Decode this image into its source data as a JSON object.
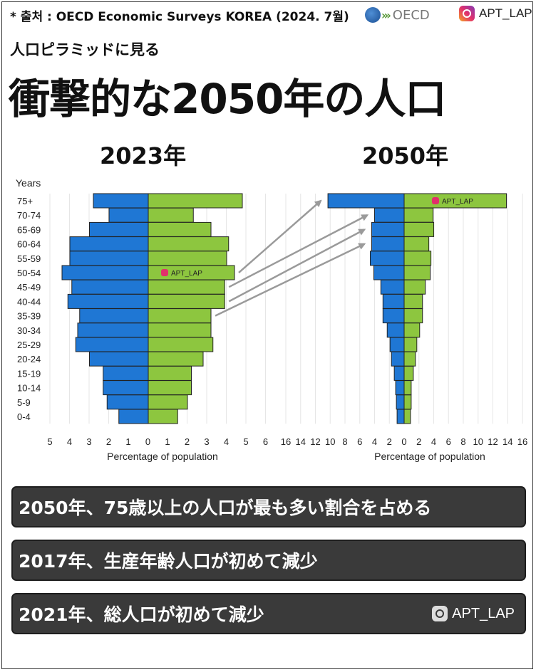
{
  "header": {
    "source": "* 출처 : OECD Economic Surveys KOREA (2024. 7월)",
    "oecd_logo": "OECD",
    "instagram": "APT_LAP"
  },
  "subtitle": "人口ピラミッドに見る",
  "title": "衝撃的な2050年の人口",
  "colors": {
    "male": "#1f77d4",
    "female": "#8dc63f",
    "bar_border": "#222222",
    "arrow": "#9a9a9a",
    "box_bg": "#3a3a3a"
  },
  "chart_data": [
    {
      "type": "bar",
      "orientation": "horizontal-population-pyramid",
      "title": "2023年",
      "ylabel": "Years",
      "xlabel": "Percentage of population",
      "categories": [
        "75+",
        "70-74",
        "65-69",
        "60-64",
        "55-59",
        "50-54",
        "45-49",
        "40-44",
        "35-39",
        "30-34",
        "25-29",
        "20-24",
        "15-19",
        "10-14",
        "5-9",
        "0-4"
      ],
      "series": [
        {
          "side": "left",
          "color": "#1f77d4",
          "values": [
            2.8,
            2.0,
            3.0,
            4.0,
            4.0,
            4.4,
            3.9,
            4.1,
            3.5,
            3.6,
            3.7,
            3.0,
            2.3,
            2.3,
            2.1,
            1.5
          ]
        },
        {
          "side": "right",
          "color": "#8dc63f",
          "values": [
            4.8,
            2.3,
            3.2,
            4.1,
            4.0,
            4.4,
            3.9,
            3.9,
            3.2,
            3.2,
            3.3,
            2.8,
            2.2,
            2.2,
            2.0,
            1.5
          ]
        }
      ],
      "x_ticks": [
        "5",
        "4",
        "3",
        "2",
        "1",
        "0",
        "1",
        "2",
        "3",
        "4",
        "5",
        "6"
      ],
      "xlim": [
        -5,
        6
      ],
      "watermark": "APT_LAP"
    },
    {
      "type": "bar",
      "orientation": "horizontal-population-pyramid",
      "title": "2050年",
      "xlabel": "Percentage of population",
      "categories": [
        "75+",
        "70-74",
        "65-69",
        "60-64",
        "55-59",
        "50-54",
        "45-49",
        "40-44",
        "35-39",
        "30-34",
        "25-29",
        "20-24",
        "15-19",
        "10-14",
        "5-9",
        "0-4"
      ],
      "series": [
        {
          "side": "left",
          "color": "#1f77d4",
          "values": [
            10.8,
            4.2,
            4.6,
            4.6,
            4.8,
            4.3,
            3.3,
            3.0,
            3.0,
            2.4,
            2.0,
            1.8,
            1.4,
            1.2,
            1.1,
            1.0
          ]
        },
        {
          "side": "right",
          "color": "#8dc63f",
          "values": [
            14.5,
            4.1,
            4.2,
            3.5,
            3.8,
            3.7,
            3.0,
            2.6,
            2.6,
            2.2,
            1.8,
            1.6,
            1.3,
            1.0,
            1.0,
            0.9
          ]
        }
      ],
      "x_ticks": [
        "16",
        "14",
        "12",
        "10",
        "8",
        "6",
        "4",
        "2",
        "0",
        "2",
        "4",
        "6",
        "8",
        "10",
        "12",
        "14",
        "16"
      ],
      "xlim": [
        -16,
        16
      ],
      "watermark": "APT_LAP"
    }
  ],
  "facts": [
    "2050年、75歳以上の人口が最も多い割合を占める",
    "2017年、生産年齢人口が初めて減少",
    "2021年、総人口が初めて減少"
  ],
  "footer_instagram": "APT_LAP"
}
